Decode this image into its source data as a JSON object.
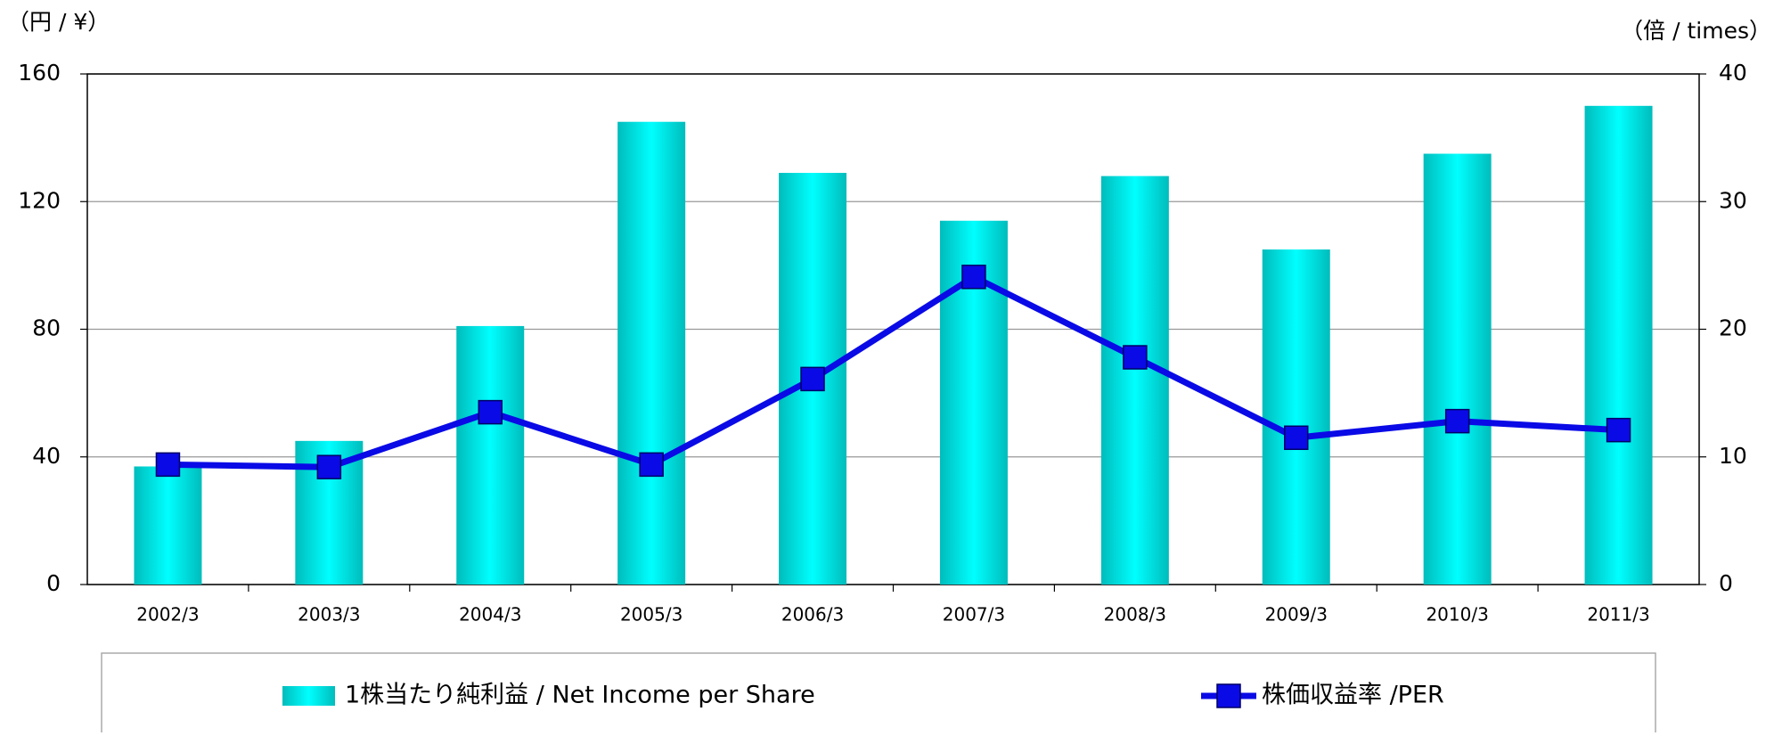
{
  "chart_data": {
    "type": "bar_line",
    "y_label": "（円 / ¥）",
    "y2_label": "（倍 / times）",
    "categories": [
      "2002/3",
      "2003/3",
      "2004/3",
      "2005/3",
      "2006/3",
      "2007/3",
      "2008/3",
      "2009/3",
      "2010/3",
      "2011/3"
    ],
    "series": [
      {
        "name": "1株当たり純利益 / Net Income per Share",
        "type": "bar",
        "color": "#00bcbc",
        "values": [
          37,
          45,
          81,
          145,
          129,
          114,
          128,
          105,
          135,
          150
        ]
      },
      {
        "name": "株価収益率 /PER",
        "type": "line",
        "axis": "y2",
        "color": "#0a0ae6",
        "values": [
          9.4,
          9.2,
          13.5,
          9.4,
          16.1,
          24.1,
          17.8,
          11.5,
          12.8,
          12.1
        ]
      }
    ],
    "ylim": [
      0,
      160
    ],
    "yticks": [
      0,
      40,
      80,
      120,
      160
    ],
    "y2lim": [
      0,
      40
    ],
    "y2ticks": [
      0,
      10,
      20,
      30,
      40
    ],
    "grid": true,
    "legend": "bottom"
  }
}
